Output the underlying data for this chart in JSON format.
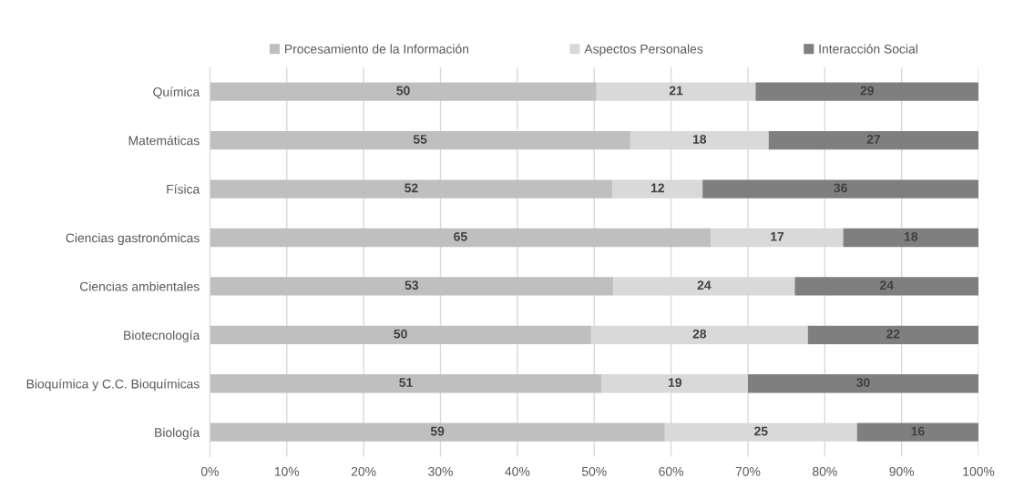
{
  "chart_data": {
    "type": "bar",
    "orientation": "horizontal",
    "stacked": true,
    "categories": [
      "Química",
      "Matemáticas",
      "Física",
      "Ciencias gastronómicas",
      "Ciencias ambientales",
      "Biotecnología",
      "Bioquímica y C.C. Bioquímicas",
      "Biología"
    ],
    "series": [
      {
        "name": "Procesamiento de la Información",
        "color": "#bfbfbf",
        "values": [
          50.3,
          54.7,
          52.4,
          65.2,
          52.5,
          49.6,
          51.0,
          59.2
        ],
        "value_labels": [
          "50",
          "55",
          "52",
          "65",
          "53",
          "50",
          "51",
          "59"
        ]
      },
      {
        "name": "Aspectos Personales",
        "color": "#d9d9d9",
        "values": [
          20.7,
          18.0,
          11.7,
          17.2,
          23.6,
          28.2,
          19.0,
          25.0
        ],
        "value_labels": [
          "21",
          "18",
          "12",
          "17",
          "24",
          "28",
          "19",
          "25"
        ]
      },
      {
        "name": "Interacción Social",
        "color": "#7f7f7f",
        "values": [
          29.0,
          27.3,
          35.9,
          17.6,
          23.9,
          22.2,
          30.0,
          15.8
        ],
        "value_labels": [
          "29",
          "27",
          "36",
          "18",
          "24",
          "22",
          "30",
          "16"
        ]
      }
    ],
    "xlim": [
      0,
      100
    ],
    "xticks": [
      {
        "value": 0,
        "label": "0%"
      },
      {
        "value": 10,
        "label": "10%"
      },
      {
        "value": 20,
        "label": "20%"
      },
      {
        "value": 30,
        "label": "30%"
      },
      {
        "value": 40,
        "label": "40%"
      },
      {
        "value": 50,
        "label": "50%"
      },
      {
        "value": 60,
        "label": "60%"
      },
      {
        "value": 70,
        "label": "70%"
      },
      {
        "value": 80,
        "label": "80%"
      },
      {
        "value": 90,
        "label": "90%"
      },
      {
        "value": 100,
        "label": "100%"
      }
    ],
    "grid": "x",
    "legend": "top"
  }
}
